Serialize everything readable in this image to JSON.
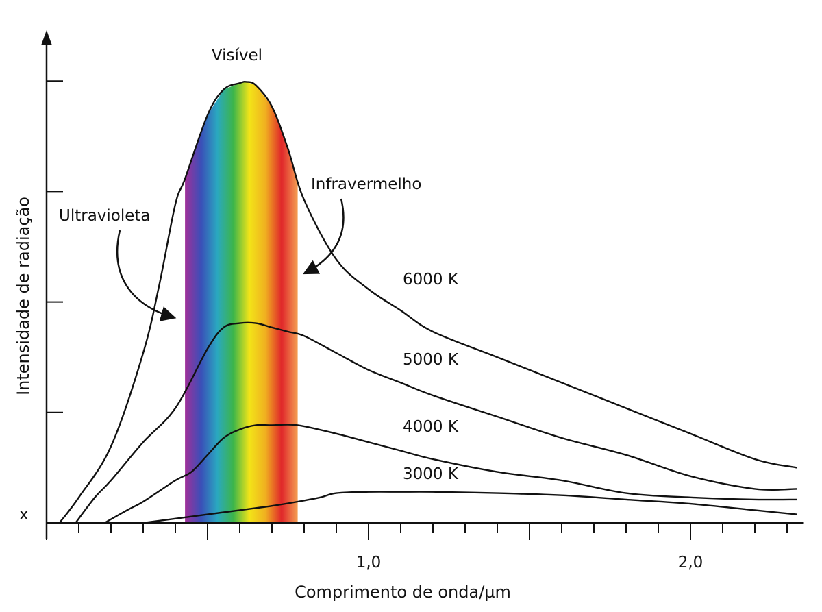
{
  "chart_data": {
    "type": "line",
    "xlabel": "Comprimento de onda/µm",
    "ylabel": "Intensidade de radiação",
    "origin_label": "x",
    "xlim": [
      0,
      2.35
    ],
    "ylim": [
      0,
      1.0
    ],
    "x_tick_labels": [
      {
        "x": 1.0,
        "label": "1,0"
      },
      {
        "x": 2.0,
        "label": "2,0"
      }
    ],
    "band": {
      "label": "Visível",
      "start": 0.43,
      "end": 0.78,
      "colors": [
        "#a0309a",
        "#3a4fb8",
        "#2aa8c0",
        "#3cb54a",
        "#f2e418",
        "#f0b020",
        "#e0262a",
        "#f4a054"
      ]
    },
    "annotations": {
      "ultraviolet": "Ultravioleta",
      "infrared": "Infravermelho"
    },
    "series": [
      {
        "name": "6000 K",
        "x": [
          0.04,
          0.1,
          0.2,
          0.3,
          0.35,
          0.4,
          0.43,
          0.5,
          0.55,
          0.6,
          0.62,
          0.65,
          0.7,
          0.75,
          0.8,
          0.9,
          1.0,
          1.1,
          1.2,
          1.4,
          1.6,
          1.8,
          2.0,
          2.2,
          2.33
        ],
        "y": [
          0.0,
          0.06,
          0.18,
          0.4,
          0.56,
          0.75,
          0.81,
          0.96,
          1.02,
          1.035,
          1.038,
          1.03,
          0.98,
          0.88,
          0.76,
          0.62,
          0.55,
          0.5,
          0.45,
          0.39,
          0.33,
          0.27,
          0.21,
          0.15,
          0.13
        ]
      },
      {
        "name": "5000 K",
        "x": [
          0.09,
          0.15,
          0.2,
          0.3,
          0.4,
          0.5,
          0.55,
          0.6,
          0.65,
          0.7,
          0.75,
          0.8,
          0.9,
          1.0,
          1.1,
          1.2,
          1.4,
          1.6,
          1.8,
          2.0,
          2.2,
          2.33
        ],
        "y": [
          0.0,
          0.06,
          0.1,
          0.19,
          0.27,
          0.41,
          0.46,
          0.47,
          0.47,
          0.46,
          0.45,
          0.44,
          0.4,
          0.36,
          0.33,
          0.3,
          0.25,
          0.2,
          0.16,
          0.11,
          0.08,
          0.08
        ]
      },
      {
        "name": "4000 K",
        "x": [
          0.18,
          0.25,
          0.3,
          0.4,
          0.45,
          0.5,
          0.55,
          0.6,
          0.65,
          0.7,
          0.78,
          0.9,
          1.0,
          1.1,
          1.2,
          1.4,
          1.6,
          1.8,
          2.0,
          2.2,
          2.33
        ],
        "y": [
          0.0,
          0.03,
          0.05,
          0.1,
          0.12,
          0.16,
          0.2,
          0.22,
          0.23,
          0.23,
          0.23,
          0.21,
          0.19,
          0.17,
          0.15,
          0.12,
          0.1,
          0.07,
          0.06,
          0.055,
          0.055
        ]
      },
      {
        "name": "3000 K",
        "x": [
          0.3,
          0.4,
          0.5,
          0.6,
          0.7,
          0.78,
          0.85,
          0.9,
          1.0,
          1.1,
          1.2,
          1.4,
          1.6,
          1.8,
          2.0,
          2.2,
          2.33
        ],
        "y": [
          0.0,
          0.01,
          0.02,
          0.03,
          0.04,
          0.05,
          0.06,
          0.07,
          0.073,
          0.073,
          0.073,
          0.07,
          0.065,
          0.055,
          0.045,
          0.03,
          0.02
        ]
      }
    ]
  }
}
